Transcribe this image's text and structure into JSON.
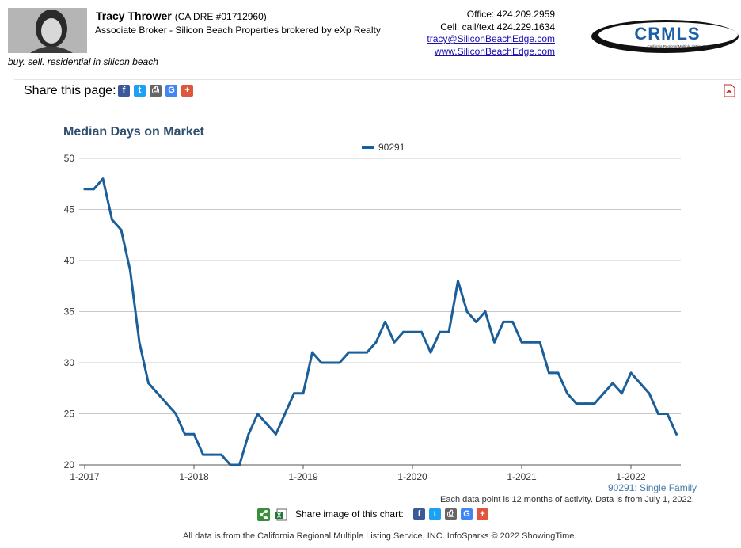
{
  "header": {
    "agent_name": "Tracy Thrower",
    "agent_dre": "(CA DRE #01712960)",
    "agent_role": "Associate Broker - Silicon Beach Properties brokered by eXp Realty",
    "tagline": "buy. sell. residential in silicon beach",
    "office": "Office: 424.209.2959",
    "cell": "Cell: call/text 424.229.1634",
    "email": "tracy@SiliconBeachEdge.com",
    "website": "www.SiliconBeachEdge.com",
    "logo_text": "CRMLS",
    "logo_subtext": "California Regional Multiple Listing Service, Inc."
  },
  "share_bar": {
    "label": "Share this page:",
    "icons": [
      {
        "name": "facebook-icon",
        "glyph": "f",
        "color": "#3b5998"
      },
      {
        "name": "twitter-icon",
        "glyph": "t",
        "color": "#1da1f2"
      },
      {
        "name": "print-icon",
        "glyph": "⎙",
        "color": "#666666"
      },
      {
        "name": "google-icon",
        "glyph": "G",
        "color": "#4285f4"
      },
      {
        "name": "add-icon",
        "glyph": "+",
        "color": "#e0553d"
      }
    ]
  },
  "chart_data": {
    "type": "line",
    "title": "Median Days on Market",
    "xlabel": "",
    "ylabel": "",
    "ylim": [
      20,
      50
    ],
    "yticks": [
      20,
      25,
      30,
      35,
      40,
      45,
      50
    ],
    "xtick_labels": [
      "1-2017",
      "1-2018",
      "1-2019",
      "1-2020",
      "1-2021",
      "1-2022"
    ],
    "grid": true,
    "legend_position": "top-center",
    "series": [
      {
        "name": "90291",
        "color": "#1a5e9a",
        "start": "1-2017",
        "values": [
          47,
          47,
          48,
          44,
          43,
          39,
          32,
          28,
          27,
          26,
          25,
          23,
          23,
          21,
          21,
          21,
          20,
          20,
          23,
          25,
          24,
          23,
          25,
          27,
          27,
          31,
          30,
          30,
          30,
          31,
          31,
          31,
          32,
          34,
          32,
          33,
          33,
          33,
          31,
          33,
          33,
          38,
          35,
          34,
          35,
          32,
          34,
          34,
          32,
          32,
          32,
          29,
          29,
          27,
          26,
          26,
          26,
          27,
          28,
          27,
          29,
          28,
          27,
          25,
          25,
          23
        ]
      }
    ]
  },
  "series_label": "90291: Single Family",
  "note": "Each data point is 12 months of activity. Data is from July 1, 2022.",
  "share_image_label": "Share image of this chart:",
  "footer": "All data is from the California Regional Multiple Listing Service, INC. InfoSparks © 2022 ShowingTime."
}
